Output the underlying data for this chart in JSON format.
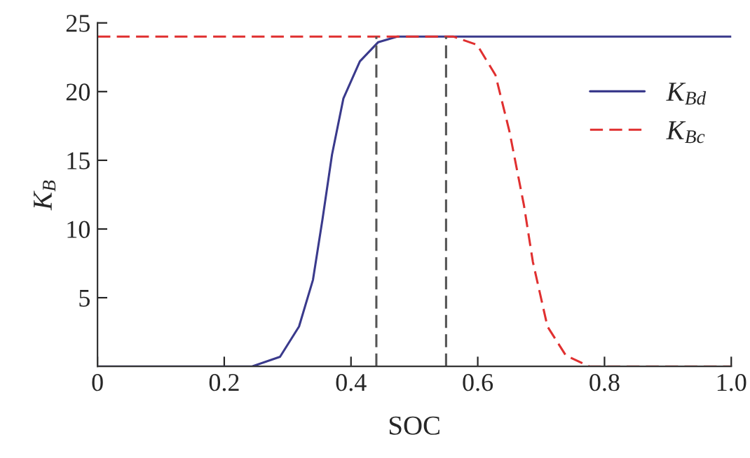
{
  "chart_data": {
    "type": "line",
    "xlabel": "SOC",
    "ylabel": "K$_{B}$",
    "xlim": [
      0,
      1.0
    ],
    "ylim": [
      0,
      25
    ],
    "xticks": [
      0,
      0.2,
      0.4,
      0.6,
      0.8,
      {
        "value": 1.0,
        "label": "1.0"
      }
    ],
    "yticks": [
      5,
      10,
      15,
      20,
      25
    ],
    "grid": false,
    "legend": "top right",
    "series": [
      {
        "name": "K$_{Bd}$",
        "color": "#3a3a8c",
        "line_style": "solid",
        "x": [
          0,
          0.244,
          0.288,
          0.318,
          0.34,
          0.355,
          0.37,
          0.388,
          0.414,
          0.443,
          0.473,
          1.0
        ],
        "values": [
          0,
          0,
          0.7,
          2.9,
          6.3,
          10.7,
          15.4,
          19.5,
          22.2,
          23.6,
          24,
          24
        ]
      },
      {
        "name": "K$_{Bc}$",
        "color": "#e03030",
        "line_style": "dashed",
        "x": [
          0,
          0.562,
          0.599,
          0.628,
          0.65,
          0.673,
          0.687,
          0.71,
          0.739,
          0.776,
          1.0
        ],
        "values": [
          24,
          24,
          23.4,
          21.2,
          17.1,
          11.7,
          7.6,
          2.9,
          0.8,
          0,
          0
        ]
      }
    ],
    "ref_lines": [
      {
        "axis": "x",
        "value": 0.44,
        "color": "#555555",
        "line_style": "dashed"
      },
      {
        "axis": "x",
        "value": 0.55,
        "color": "#555555",
        "line_style": "dashed"
      }
    ]
  }
}
